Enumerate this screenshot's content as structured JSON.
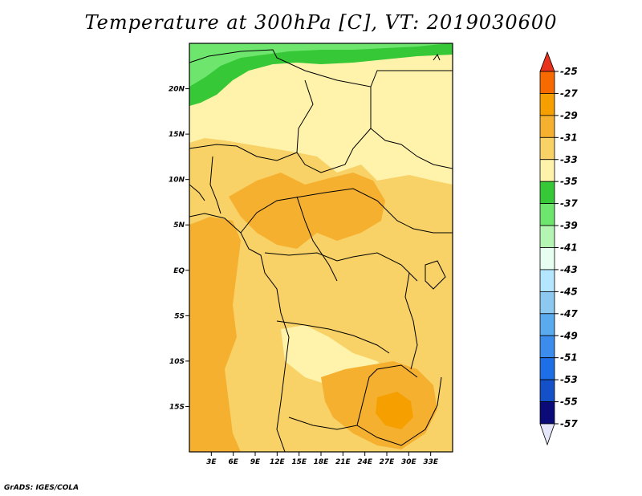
{
  "title": "Temperature at 300hPa [C], VT: 2019030600",
  "credit": "GrADS: IGES/COLA",
  "map": {
    "lon_range": [
      0,
      36
    ],
    "lat_range": [
      -20,
      25
    ],
    "lat_ticks": [
      {
        "value": 20,
        "label": "20N"
      },
      {
        "value": 15,
        "label": "15N"
      },
      {
        "value": 10,
        "label": "10N"
      },
      {
        "value": 5,
        "label": "5N"
      },
      {
        "value": 0,
        "label": "EQ"
      },
      {
        "value": -5,
        "label": "5S"
      },
      {
        "value": -10,
        "label": "10S"
      },
      {
        "value": -15,
        "label": "15S"
      }
    ],
    "lon_ticks": [
      {
        "value": 3,
        "label": "3E"
      },
      {
        "value": 6,
        "label": "6E"
      },
      {
        "value": 9,
        "label": "9E"
      },
      {
        "value": 12,
        "label": "12E"
      },
      {
        "value": 15,
        "label": "15E"
      },
      {
        "value": 18,
        "label": "18E"
      },
      {
        "value": 21,
        "label": "21E"
      },
      {
        "value": 24,
        "label": "24E"
      },
      {
        "value": 27,
        "label": "27E"
      },
      {
        "value": 30,
        "label": "30E"
      },
      {
        "value": 33,
        "label": "33E"
      }
    ]
  },
  "colorbar": {
    "labels": [
      "-25",
      "-27",
      "-29",
      "-31",
      "-33",
      "-35",
      "-37",
      "-39",
      "-41",
      "-43",
      "-45",
      "-47",
      "-49",
      "-51",
      "-53",
      "-55",
      "-57"
    ],
    "colors": {
      "top_arrow": "#e8321e",
      "bottom_arrow": "#e6e6fa",
      "bins": [
        "#f66a00",
        "#f5a000",
        "#f5b030",
        "#f8d266",
        "#fff3ac",
        "#37c837",
        "#6ee66e",
        "#b4f5b4",
        "#e6fff0",
        "#b4e6ff",
        "#8cc8f0",
        "#5aaaf0",
        "#3c8ced",
        "#1e6ee6",
        "#1450c8",
        "#0a0a78"
      ]
    }
  },
  "field_colors": {
    "c27": "#f5a000",
    "c29": "#f5b030",
    "c31": "#f8d266",
    "c33": "#fff3ac",
    "c35": "#37c837",
    "c37": "#6ee66e"
  }
}
